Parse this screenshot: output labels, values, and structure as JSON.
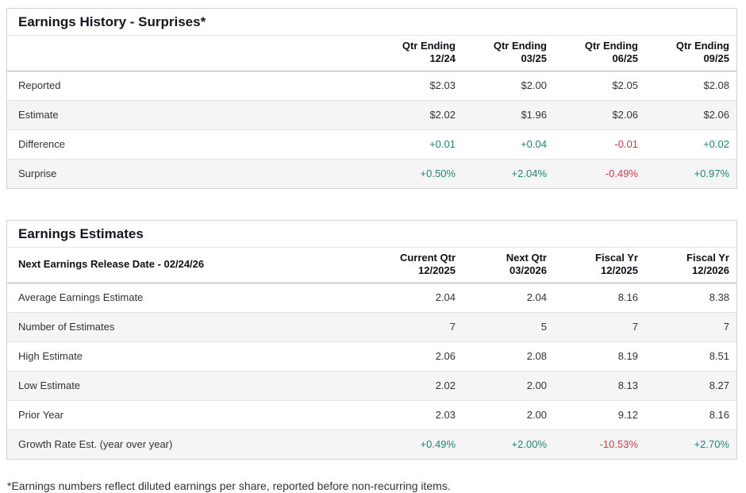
{
  "colors": {
    "positive": "#218573",
    "negative": "#c43b51",
    "border": "#d2d2d2",
    "alt_row_background": "#f5f5f5",
    "text": "#333333",
    "heading": "#15151e"
  },
  "history": {
    "title": "Earnings History - Surprises*",
    "corner_label": "",
    "columns": [
      "Qtr Ending\n12/24",
      "Qtr Ending\n03/25",
      "Qtr Ending\n06/25",
      "Qtr Ending\n09/25"
    ],
    "rows": [
      {
        "label": "Reported",
        "values": [
          "$2.03",
          "$2.00",
          "$2.05",
          "$2.08"
        ]
      },
      {
        "label": "Estimate",
        "values": [
          "$2.02",
          "$1.96",
          "$2.06",
          "$2.06"
        ]
      },
      {
        "label": "Difference",
        "values": [
          "+0.01",
          "+0.04",
          "-0.01",
          "+0.02"
        ]
      },
      {
        "label": "Surprise",
        "values": [
          "+0.50%",
          "+2.04%",
          "-0.49%",
          "+0.97%"
        ]
      }
    ]
  },
  "estimates": {
    "title": "Earnings Estimates",
    "corner_label": "Next Earnings Release Date - 02/24/26",
    "columns": [
      "Current Qtr\n12/2025",
      "Next Qtr\n03/2026",
      "Fiscal Yr\n12/2025",
      "Fiscal Yr\n12/2026"
    ],
    "rows": [
      {
        "label": "Average Earnings Estimate",
        "values": [
          "2.04",
          "2.04",
          "8.16",
          "8.38"
        ]
      },
      {
        "label": "Number of Estimates",
        "values": [
          "7",
          "5",
          "7",
          "7"
        ]
      },
      {
        "label": "High Estimate",
        "values": [
          "2.06",
          "2.08",
          "8.19",
          "8.51"
        ]
      },
      {
        "label": "Low Estimate",
        "values": [
          "2.02",
          "2.00",
          "8.13",
          "8.27"
        ]
      },
      {
        "label": "Prior Year",
        "values": [
          "2.03",
          "2.00",
          "9.12",
          "8.16"
        ]
      },
      {
        "label": "Growth Rate Est. (year over year)",
        "values": [
          "+0.49%",
          "+2.00%",
          "-10.53%",
          "+2.70%"
        ]
      }
    ]
  },
  "footnote": "*Earnings numbers reflect diluted earnings per share, reported before non-recurring items."
}
